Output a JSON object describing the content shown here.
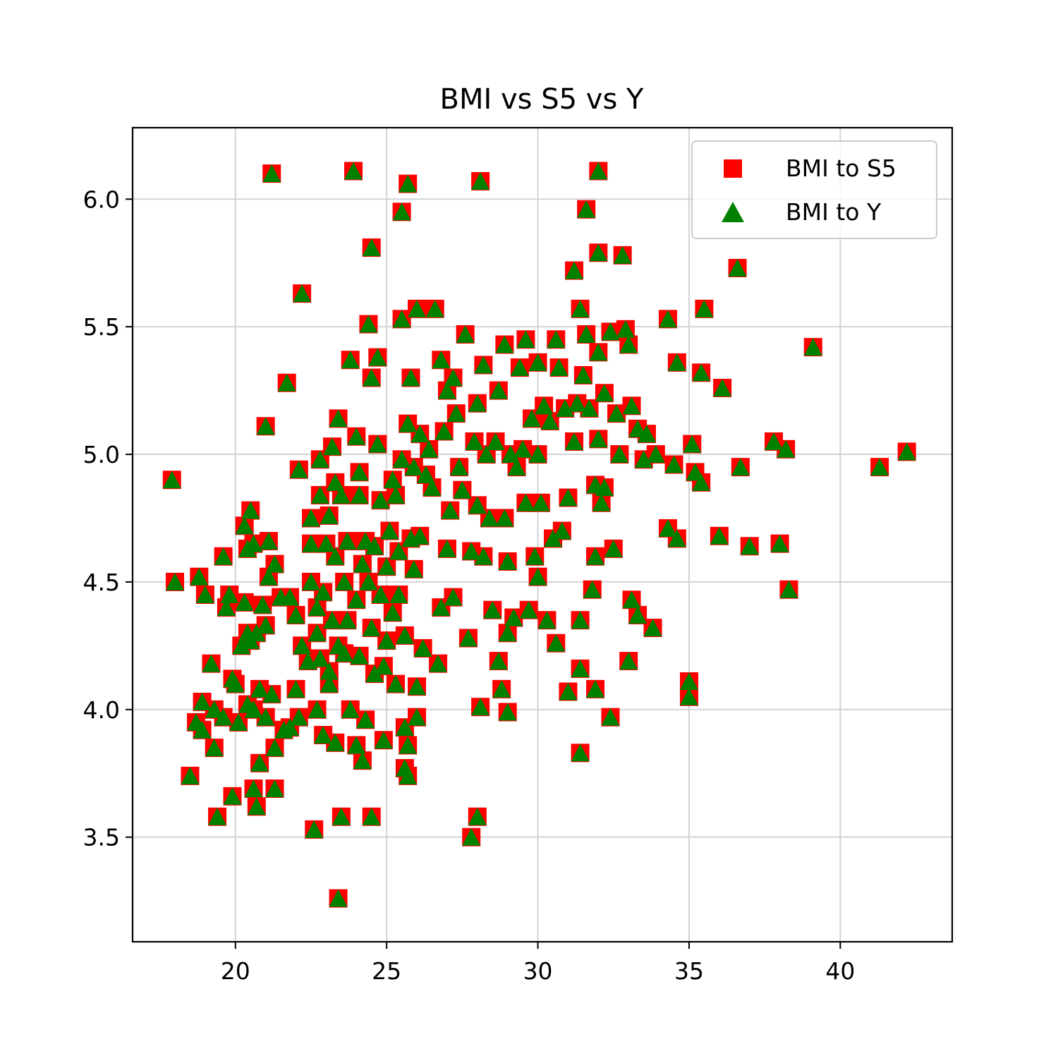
{
  "chart_data": {
    "type": "scatter",
    "title": "BMI vs S5 vs Y",
    "xlabel": "",
    "ylabel": "",
    "xlim": [
      16.6,
      43.7
    ],
    "ylim": [
      3.09,
      6.28
    ],
    "xticks": [
      20,
      25,
      30,
      35,
      40
    ],
    "yticks": [
      3.5,
      4.0,
      4.5,
      5.0,
      5.5,
      6.0
    ],
    "xtick_labels": [
      "20",
      "25",
      "30",
      "35",
      "40"
    ],
    "ytick_labels": [
      "3.5",
      "4.0",
      "4.5",
      "5.0",
      "5.5",
      "6.0"
    ],
    "grid": true,
    "legend_position": "top-right",
    "series": [
      {
        "name": "BMI to S5",
        "marker": "square",
        "color": "#ff0000"
      },
      {
        "name": "BMI to Y",
        "marker": "triangle",
        "color": "#008000"
      }
    ],
    "points": [
      [
        17.9,
        4.9
      ],
      [
        18.0,
        4.5
      ],
      [
        18.5,
        3.74
      ],
      [
        18.7,
        3.95
      ],
      [
        18.8,
        4.52
      ],
      [
        18.9,
        4.03
      ],
      [
        18.9,
        3.92
      ],
      [
        19.0,
        4.45
      ],
      [
        19.2,
        4.18
      ],
      [
        19.3,
        3.85
      ],
      [
        19.3,
        4.0
      ],
      [
        19.4,
        3.58
      ],
      [
        19.6,
        4.6
      ],
      [
        19.6,
        3.97
      ],
      [
        19.7,
        4.4
      ],
      [
        19.8,
        4.45
      ],
      [
        19.9,
        4.12
      ],
      [
        19.9,
        3.66
      ],
      [
        20.0,
        4.1
      ],
      [
        20.1,
        3.95
      ],
      [
        20.2,
        4.25
      ],
      [
        20.3,
        4.72
      ],
      [
        20.3,
        4.42
      ],
      [
        20.4,
        4.63
      ],
      [
        20.4,
        4.3
      ],
      [
        20.4,
        4.02
      ],
      [
        20.5,
        4.78
      ],
      [
        20.5,
        4.27
      ],
      [
        20.6,
        4.65
      ],
      [
        20.6,
        4.0
      ],
      [
        20.6,
        3.69
      ],
      [
        20.7,
        4.3
      ],
      [
        20.7,
        3.62
      ],
      [
        20.8,
        3.79
      ],
      [
        20.8,
        4.08
      ],
      [
        20.9,
        4.41
      ],
      [
        21.0,
        5.11
      ],
      [
        21.0,
        4.33
      ],
      [
        21.0,
        3.97
      ],
      [
        21.1,
        4.66
      ],
      [
        21.1,
        4.52
      ],
      [
        21.2,
        6.1
      ],
      [
        21.2,
        4.06
      ],
      [
        21.3,
        4.57
      ],
      [
        21.3,
        3.85
      ],
      [
        21.3,
        3.69
      ],
      [
        21.5,
        4.44
      ],
      [
        21.6,
        3.92
      ],
      [
        21.7,
        5.28
      ],
      [
        21.8,
        4.44
      ],
      [
        21.8,
        3.93
      ],
      [
        22.0,
        4.37
      ],
      [
        22.0,
        4.08
      ],
      [
        22.1,
        4.94
      ],
      [
        22.1,
        3.97
      ],
      [
        22.2,
        5.63
      ],
      [
        22.2,
        4.25
      ],
      [
        22.4,
        4.19
      ],
      [
        22.5,
        4.75
      ],
      [
        22.5,
        4.5
      ],
      [
        22.5,
        4.65
      ],
      [
        22.6,
        3.53
      ],
      [
        22.7,
        4.4
      ],
      [
        22.7,
        4.3
      ],
      [
        22.7,
        4.0
      ],
      [
        22.8,
        4.98
      ],
      [
        22.8,
        4.84
      ],
      [
        22.8,
        4.2
      ],
      [
        22.9,
        4.46
      ],
      [
        22.9,
        3.9
      ],
      [
        23.0,
        4.65
      ],
      [
        23.1,
        4.76
      ],
      [
        23.1,
        4.15
      ],
      [
        23.1,
        4.1
      ],
      [
        23.2,
        5.03
      ],
      [
        23.2,
        4.35
      ],
      [
        23.3,
        4.89
      ],
      [
        23.3,
        4.6
      ],
      [
        23.3,
        3.87
      ],
      [
        23.4,
        5.14
      ],
      [
        23.4,
        4.25
      ],
      [
        23.4,
        3.26
      ],
      [
        23.5,
        3.58
      ],
      [
        23.5,
        4.84
      ],
      [
        23.6,
        4.5
      ],
      [
        23.6,
        4.22
      ],
      [
        23.7,
        4.66
      ],
      [
        23.7,
        4.35
      ],
      [
        23.8,
        5.37
      ],
      [
        23.8,
        4.0
      ],
      [
        23.9,
        6.11
      ],
      [
        24.0,
        4.43
      ],
      [
        24.0,
        5.07
      ],
      [
        24.0,
        3.86
      ],
      [
        24.1,
        4.84
      ],
      [
        24.1,
        4.93
      ],
      [
        24.1,
        4.21
      ],
      [
        24.2,
        3.8
      ],
      [
        24.2,
        4.57
      ],
      [
        24.3,
        4.66
      ],
      [
        24.3,
        3.96
      ],
      [
        24.4,
        5.51
      ],
      [
        24.4,
        4.5
      ],
      [
        24.5,
        5.3
      ],
      [
        24.5,
        3.58
      ],
      [
        24.5,
        5.81
      ],
      [
        24.5,
        4.32
      ],
      [
        24.6,
        4.64
      ],
      [
        24.6,
        4.14
      ],
      [
        24.7,
        5.38
      ],
      [
        24.7,
        5.04
      ],
      [
        24.8,
        4.82
      ],
      [
        24.8,
        4.45
      ],
      [
        24.9,
        4.17
      ],
      [
        24.9,
        3.88
      ],
      [
        25.0,
        4.56
      ],
      [
        25.0,
        4.27
      ],
      [
        25.1,
        4.7
      ],
      [
        25.2,
        4.9
      ],
      [
        25.2,
        4.38
      ],
      [
        25.3,
        4.84
      ],
      [
        25.3,
        4.1
      ],
      [
        25.4,
        4.62
      ],
      [
        25.4,
        4.45
      ],
      [
        25.5,
        5.95
      ],
      [
        25.5,
        5.53
      ],
      [
        25.5,
        4.98
      ],
      [
        25.6,
        3.77
      ],
      [
        25.6,
        4.29
      ],
      [
        25.6,
        3.93
      ],
      [
        25.7,
        6.06
      ],
      [
        25.7,
        5.12
      ],
      [
        25.7,
        3.86
      ],
      [
        25.7,
        3.74
      ],
      [
        25.8,
        5.3
      ],
      [
        25.8,
        4.67
      ],
      [
        25.9,
        4.95
      ],
      [
        25.9,
        4.55
      ],
      [
        26.0,
        5.57
      ],
      [
        26.0,
        4.09
      ],
      [
        26.0,
        3.97
      ],
      [
        26.1,
        5.08
      ],
      [
        26.1,
        4.68
      ],
      [
        26.2,
        4.24
      ],
      [
        26.3,
        4.92
      ],
      [
        26.4,
        5.02
      ],
      [
        26.5,
        4.87
      ],
      [
        26.6,
        5.57
      ],
      [
        26.7,
        4.18
      ],
      [
        26.8,
        5.37
      ],
      [
        26.8,
        4.4
      ],
      [
        26.9,
        5.09
      ],
      [
        27.0,
        5.25
      ],
      [
        27.0,
        4.63
      ],
      [
        27.1,
        4.78
      ],
      [
        27.2,
        5.3
      ],
      [
        27.2,
        4.44
      ],
      [
        27.3,
        5.16
      ],
      [
        27.4,
        4.95
      ],
      [
        27.5,
        4.86
      ],
      [
        27.6,
        5.47
      ],
      [
        27.7,
        4.28
      ],
      [
        27.8,
        3.5
      ],
      [
        27.8,
        4.62
      ],
      [
        27.9,
        5.05
      ],
      [
        28.0,
        5.2
      ],
      [
        28.0,
        4.8
      ],
      [
        28.0,
        3.58
      ],
      [
        28.1,
        6.07
      ],
      [
        28.1,
        4.01
      ],
      [
        28.2,
        5.35
      ],
      [
        28.2,
        4.6
      ],
      [
        28.3,
        5.0
      ],
      [
        28.4,
        4.75
      ],
      [
        28.5,
        4.39
      ],
      [
        28.6,
        5.05
      ],
      [
        28.7,
        5.25
      ],
      [
        28.7,
        4.19
      ],
      [
        28.8,
        4.08
      ],
      [
        28.9,
        5.43
      ],
      [
        28.9,
        4.75
      ],
      [
        29.0,
        4.58
      ],
      [
        29.0,
        4.3
      ],
      [
        29.0,
        3.99
      ],
      [
        29.1,
        5.0
      ],
      [
        29.2,
        4.36
      ],
      [
        29.3,
        4.95
      ],
      [
        29.4,
        5.34
      ],
      [
        29.5,
        5.02
      ],
      [
        29.6,
        4.81
      ],
      [
        29.6,
        5.45
      ],
      [
        29.7,
        4.39
      ],
      [
        29.8,
        5.14
      ],
      [
        29.9,
        4.6
      ],
      [
        30.0,
        5.36
      ],
      [
        30.0,
        5.0
      ],
      [
        30.0,
        4.52
      ],
      [
        30.1,
        4.81
      ],
      [
        30.2,
        5.19
      ],
      [
        30.3,
        4.35
      ],
      [
        30.4,
        5.13
      ],
      [
        30.5,
        4.67
      ],
      [
        30.6,
        5.45
      ],
      [
        30.6,
        4.26
      ],
      [
        30.7,
        5.34
      ],
      [
        30.8,
        4.7
      ],
      [
        30.9,
        5.18
      ],
      [
        31.0,
        4.07
      ],
      [
        31.0,
        4.83
      ],
      [
        31.2,
        5.72
      ],
      [
        31.2,
        5.05
      ],
      [
        31.3,
        5.2
      ],
      [
        31.4,
        5.57
      ],
      [
        31.4,
        4.35
      ],
      [
        31.4,
        3.83
      ],
      [
        31.4,
        4.16
      ],
      [
        31.5,
        5.31
      ],
      [
        31.6,
        5.96
      ],
      [
        31.6,
        5.47
      ],
      [
        31.7,
        5.18
      ],
      [
        31.8,
        4.47
      ],
      [
        31.9,
        4.88
      ],
      [
        31.9,
        4.08
      ],
      [
        31.9,
        4.6
      ],
      [
        32.0,
        5.79
      ],
      [
        32.0,
        5.4
      ],
      [
        32.0,
        5.06
      ],
      [
        32.0,
        6.11
      ],
      [
        32.1,
        4.81
      ],
      [
        32.2,
        5.24
      ],
      [
        32.2,
        4.87
      ],
      [
        32.4,
        5.48
      ],
      [
        32.4,
        3.97
      ],
      [
        32.5,
        4.63
      ],
      [
        32.6,
        5.16
      ],
      [
        32.7,
        5.0
      ],
      [
        32.8,
        5.78
      ],
      [
        32.9,
        5.49
      ],
      [
        33.0,
        5.43
      ],
      [
        33.0,
        4.19
      ],
      [
        33.1,
        4.43
      ],
      [
        33.1,
        5.19
      ],
      [
        33.3,
        4.37
      ],
      [
        33.3,
        5.1
      ],
      [
        33.5,
        4.98
      ],
      [
        33.6,
        5.08
      ],
      [
        33.8,
        4.32
      ],
      [
        33.9,
        5.0
      ],
      [
        34.3,
        5.53
      ],
      [
        34.3,
        4.71
      ],
      [
        34.5,
        4.96
      ],
      [
        34.6,
        4.67
      ],
      [
        34.6,
        5.36
      ],
      [
        35.0,
        4.11
      ],
      [
        35.0,
        4.05
      ],
      [
        35.1,
        5.04
      ],
      [
        35.2,
        4.93
      ],
      [
        35.4,
        5.32
      ],
      [
        35.4,
        4.89
      ],
      [
        35.5,
        5.57
      ],
      [
        36.0,
        4.68
      ],
      [
        36.1,
        5.26
      ],
      [
        36.6,
        5.73
      ],
      [
        36.7,
        4.95
      ],
      [
        37.0,
        4.64
      ],
      [
        37.8,
        5.05
      ],
      [
        38.0,
        4.65
      ],
      [
        38.2,
        5.02
      ],
      [
        38.3,
        4.47
      ],
      [
        39.1,
        5.42
      ],
      [
        41.3,
        4.95
      ],
      [
        42.2,
        5.01
      ]
    ]
  }
}
